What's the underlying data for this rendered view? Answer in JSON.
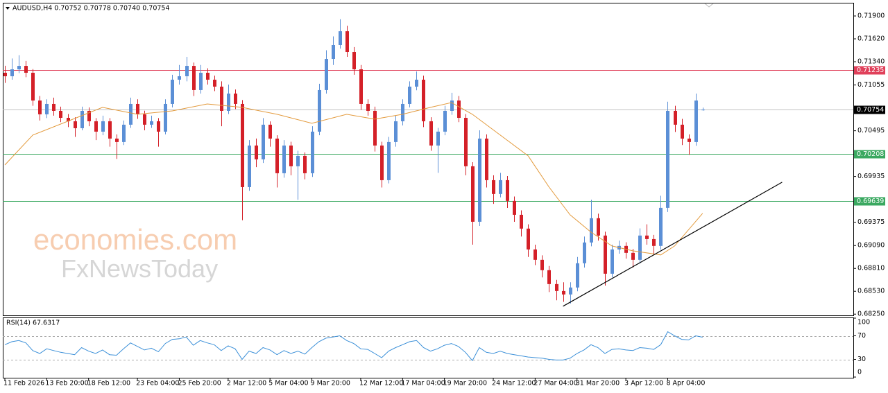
{
  "header": "AUDUSD,H4  0.70752 0.70778 0.70740 0.70754",
  "watermark": [
    "economies.com",
    "FxNewsToday"
  ],
  "chart_data": [
    {
      "type": "candlestick",
      "up_color": "#5b8fd6",
      "down_color": "#d42028",
      "xlim": [
        -0.3,
        121.6
      ],
      "ylim": [
        0.68235,
        0.72053
      ],
      "yticks": [
        {
          "value": 0.719,
          "label": "0.71900"
        },
        {
          "value": 0.7162,
          "label": "0.71620"
        },
        {
          "value": 0.7134,
          "label": "0.71340"
        },
        0.71055,
        0.70495,
        0.69935,
        0.69375,
        {
          "value": 0.6909,
          "label": "0.69090"
        },
        {
          "value": 0.6881,
          "label": "0.68810"
        },
        {
          "value": 0.6853,
          "label": "0.68530"
        },
        {
          "value": 0.6825,
          "label": "0.68250"
        }
      ],
      "xticks": [
        {
          "value": 0,
          "label": "11 Feb 2026"
        },
        {
          "value": 6,
          "label": "13 Feb 20:00"
        },
        {
          "value": 12,
          "label": "18 Feb 12:00"
        },
        {
          "value": 19,
          "label": "23 Feb 04:00"
        },
        {
          "value": 25,
          "label": "25 Feb 20:00"
        },
        {
          "value": 32,
          "label": "2 Mar 12:00"
        },
        {
          "value": 38,
          "label": "5 Mar 04:00"
        },
        {
          "value": 44,
          "label": "9 Mar 20:00"
        },
        {
          "value": 51,
          "label": "12 Mar 12:00"
        },
        {
          "value": 57,
          "label": "17 Mar 04:00"
        },
        {
          "value": 63,
          "label": "19 Mar 20:00"
        },
        {
          "value": 70,
          "label": "24 Mar 12:00"
        },
        {
          "value": 76,
          "label": "27 Mar 04:00"
        },
        {
          "value": 82,
          "label": "31 Mar 20:00"
        },
        {
          "value": 89,
          "label": "3 Apr 12:00"
        },
        {
          "value": 95,
          "label": "8 Apr 04:00"
        }
      ],
      "levels": [
        {
          "price": 0.71235,
          "color": "#e0405a",
          "box": "#e0405a"
        },
        {
          "price": 0.70754,
          "color": "#c0c0c0",
          "box": "#000000"
        },
        {
          "price": 0.70208,
          "color": "#3aa860",
          "box": "#3aa860"
        },
        {
          "price": 0.69639,
          "color": "#3aa860",
          "box": "#3aa860"
        }
      ],
      "candles": [
        [
          0.71205,
          0.7129,
          0.7108,
          0.71162
        ],
        [
          0.71162,
          0.7138,
          0.7112,
          0.71247
        ],
        [
          0.71247,
          0.7142,
          0.712,
          0.71289
        ],
        [
          0.71289,
          0.7135,
          0.7115,
          0.71205
        ],
        [
          0.71205,
          0.7125,
          0.708,
          0.70865
        ],
        [
          0.70865,
          0.7092,
          0.7062,
          0.70696
        ],
        [
          0.70696,
          0.7088,
          0.7065,
          0.70823
        ],
        [
          0.70823,
          0.709,
          0.7068,
          0.70738
        ],
        [
          0.70738,
          0.7079,
          0.706,
          0.70653
        ],
        [
          0.70653,
          0.707,
          0.7054,
          0.70611
        ],
        [
          0.70611,
          0.7066,
          0.7042,
          0.70526
        ],
        [
          0.70526,
          0.7079,
          0.705,
          0.70738
        ],
        [
          0.70738,
          0.7078,
          0.7055,
          0.70611
        ],
        [
          0.70611,
          0.7065,
          0.7038,
          0.70484
        ],
        [
          0.70484,
          0.7068,
          0.7044,
          0.70611
        ],
        [
          0.70611,
          0.7065,
          0.703,
          0.70399
        ],
        [
          0.70399,
          0.7045,
          0.7015,
          0.70357
        ],
        [
          0.70357,
          0.7062,
          0.7032,
          0.70569
        ],
        [
          0.70569,
          0.709,
          0.7053,
          0.70823
        ],
        [
          0.70823,
          0.7088,
          0.7064,
          0.70696
        ],
        [
          0.70696,
          0.7074,
          0.705,
          0.70569
        ],
        [
          0.70569,
          0.7068,
          0.7053,
          0.70611
        ],
        [
          0.70611,
          0.7065,
          0.703,
          0.70484
        ],
        [
          0.70484,
          0.7088,
          0.7045,
          0.70823
        ],
        [
          0.70823,
          0.7118,
          0.7078,
          0.7112
        ],
        [
          0.7112,
          0.713,
          0.7106,
          0.71162
        ],
        [
          0.71162,
          0.714,
          0.711,
          0.71289
        ],
        [
          0.71289,
          0.7133,
          0.7092,
          0.70993
        ],
        [
          0.70993,
          0.713,
          0.7095,
          0.71205
        ],
        [
          0.71205,
          0.7126,
          0.7106,
          0.7112
        ],
        [
          0.7112,
          0.7117,
          0.7098,
          0.71035
        ],
        [
          0.71035,
          0.711,
          0.7055,
          0.70738
        ],
        [
          0.70738,
          0.7106,
          0.707,
          0.7095
        ],
        [
          0.7095,
          0.71,
          0.7076,
          0.70823
        ],
        [
          0.70823,
          0.7087,
          0.694,
          0.69805
        ],
        [
          0.69805,
          0.7038,
          0.6976,
          0.70314
        ],
        [
          0.70314,
          0.704,
          0.7005,
          0.70145
        ],
        [
          0.70145,
          0.7065,
          0.701,
          0.70569
        ],
        [
          0.70569,
          0.7061,
          0.703,
          0.70399
        ],
        [
          0.70399,
          0.7044,
          0.698,
          0.69975
        ],
        [
          0.69975,
          0.7038,
          0.6992,
          0.70314
        ],
        [
          0.70314,
          0.7036,
          0.6995,
          0.7006
        ],
        [
          0.7006,
          0.7025,
          0.6965,
          0.70187
        ],
        [
          0.70187,
          0.7023,
          0.699,
          0.69975
        ],
        [
          0.69975,
          0.7055,
          0.6993,
          0.70484
        ],
        [
          0.70484,
          0.7107,
          0.7044,
          0.70993
        ],
        [
          0.70993,
          0.7148,
          0.7095,
          0.71374
        ],
        [
          0.71374,
          0.7165,
          0.713,
          0.71544
        ],
        [
          0.71544,
          0.7186,
          0.715,
          0.71713
        ],
        [
          0.71713,
          0.7178,
          0.714,
          0.71459
        ],
        [
          0.71459,
          0.7152,
          0.7118,
          0.71247
        ],
        [
          0.71247,
          0.713,
          0.7075,
          0.70823
        ],
        [
          0.70823,
          0.7088,
          0.7068,
          0.70738
        ],
        [
          0.70738,
          0.7079,
          0.7024,
          0.70314
        ],
        [
          0.70314,
          0.7036,
          0.698,
          0.6989
        ],
        [
          0.6989,
          0.7042,
          0.6985,
          0.70357
        ],
        [
          0.70357,
          0.7068,
          0.703,
          0.70611
        ],
        [
          0.70611,
          0.7088,
          0.7056,
          0.70823
        ],
        [
          0.70823,
          0.711,
          0.7078,
          0.71035
        ],
        [
          0.71035,
          0.7122,
          0.7099,
          0.7112
        ],
        [
          0.7112,
          0.7117,
          0.7054,
          0.70611
        ],
        [
          0.70611,
          0.7066,
          0.7025,
          0.70314
        ],
        [
          0.70314,
          0.7053,
          0.6998,
          0.70484
        ],
        [
          0.70484,
          0.708,
          0.7044,
          0.70738
        ],
        [
          0.70738,
          0.7096,
          0.7069,
          0.70865
        ],
        [
          0.70865,
          0.7092,
          0.706,
          0.70653
        ],
        [
          0.70653,
          0.707,
          0.6995,
          0.7006
        ],
        [
          0.7006,
          0.7011,
          0.691,
          0.69381
        ],
        [
          0.69381,
          0.705,
          0.6933,
          0.70399
        ],
        [
          0.70399,
          0.7045,
          0.698,
          0.6989
        ],
        [
          0.6989,
          0.6995,
          0.696,
          0.69721
        ],
        [
          0.69721,
          0.6998,
          0.6968,
          0.6989
        ],
        [
          0.6989,
          0.6994,
          0.6955,
          0.69636
        ],
        [
          0.69636,
          0.6969,
          0.6938,
          0.69466
        ],
        [
          0.69466,
          0.6952,
          0.692,
          0.69297
        ],
        [
          0.69297,
          0.6935,
          0.6895,
          0.69042
        ],
        [
          0.69042,
          0.691,
          0.6885,
          0.68915
        ],
        [
          0.68915,
          0.6897,
          0.687,
          0.68788
        ],
        [
          0.68788,
          0.6884,
          0.6852,
          0.68618
        ],
        [
          0.68618,
          0.6867,
          0.6842,
          0.68533
        ],
        [
          0.68533,
          0.6864,
          0.684,
          0.68491
        ],
        [
          0.68491,
          0.6864,
          0.6838,
          0.68576
        ],
        [
          0.68576,
          0.6895,
          0.6853,
          0.68873
        ],
        [
          0.68873,
          0.692,
          0.6882,
          0.69127
        ],
        [
          0.69127,
          0.6965,
          0.6908,
          0.69424
        ],
        [
          0.69424,
          0.6948,
          0.6915,
          0.69212
        ],
        [
          0.69212,
          0.6926,
          0.686,
          0.68745
        ],
        [
          0.68745,
          0.691,
          0.687,
          0.69042
        ],
        [
          0.69042,
          0.6915,
          0.6899,
          0.69085
        ],
        [
          0.69085,
          0.6913,
          0.6893,
          0.69
        ],
        [
          0.69,
          0.6905,
          0.6882,
          0.68915
        ],
        [
          0.68915,
          0.693,
          0.6887,
          0.69212
        ],
        [
          0.69212,
          0.6935,
          0.691,
          0.69169
        ],
        [
          0.69169,
          0.6922,
          0.6898,
          0.69085
        ],
        [
          0.69085,
          0.697,
          0.6904,
          0.69551
        ],
        [
          0.69551,
          0.7085,
          0.695,
          0.70738
        ],
        [
          0.70738,
          0.708,
          0.7048,
          0.70569
        ],
        [
          0.70569,
          0.7064,
          0.7032,
          0.70399
        ],
        [
          0.70399,
          0.7045,
          0.702,
          0.70357
        ],
        [
          0.70357,
          0.7095,
          0.7031,
          0.70865
        ],
        [
          0.70752,
          0.70778,
          0.7074,
          0.70754
        ]
      ],
      "ma": {
        "color": "#e39a3c",
        "x": [
          0,
          4,
          9,
          14,
          19,
          24,
          29,
          34,
          39,
          44,
          49,
          53,
          57,
          61,
          64,
          67,
          71,
          75,
          78,
          81,
          84,
          87,
          90,
          94,
          96,
          100
        ],
        "values": [
          0.70076,
          0.70442,
          0.70611,
          0.70781,
          0.70696,
          0.70738,
          0.70823,
          0.70781,
          0.70696,
          0.70586,
          0.70696,
          0.70637,
          0.70696,
          0.70781,
          0.7084,
          0.70696,
          0.70442,
          0.70187,
          0.69805,
          0.69466,
          0.69254,
          0.69085,
          0.69025,
          0.68975,
          0.69085,
          0.69484
        ]
      },
      "trendline": {
        "color": "#000000",
        "x": [
          80,
          111.4
        ],
        "y": [
          0.68347,
          0.69865
        ]
      }
    },
    {
      "type": "line",
      "title": "RSI(14) 67.6317",
      "color": "#3a8fd8",
      "ylim": [
        0,
        100
      ],
      "yticks": [
        100,
        70,
        30,
        0
      ],
      "levels": [
        70,
        30
      ],
      "values": [
        55,
        60,
        62,
        58,
        45,
        40,
        48,
        45,
        42,
        40,
        38,
        50,
        44,
        40,
        46,
        38,
        37,
        48,
        58,
        52,
        46,
        49,
        43,
        57,
        64,
        65,
        68,
        54,
        62,
        58,
        55,
        45,
        53,
        48,
        30,
        44,
        40,
        50,
        46,
        38,
        45,
        40,
        44,
        39,
        50,
        60,
        66,
        68,
        70,
        62,
        57,
        48,
        47,
        40,
        33,
        44,
        50,
        55,
        60,
        62,
        50,
        44,
        48,
        54,
        57,
        52,
        42,
        28,
        50,
        42,
        40,
        44,
        40,
        38,
        36,
        34,
        33,
        32,
        30,
        29,
        29,
        32,
        40,
        46,
        55,
        50,
        40,
        47,
        48,
        46,
        45,
        50,
        49,
        47,
        55,
        77,
        70,
        64,
        63,
        70,
        67.6317
      ]
    }
  ]
}
